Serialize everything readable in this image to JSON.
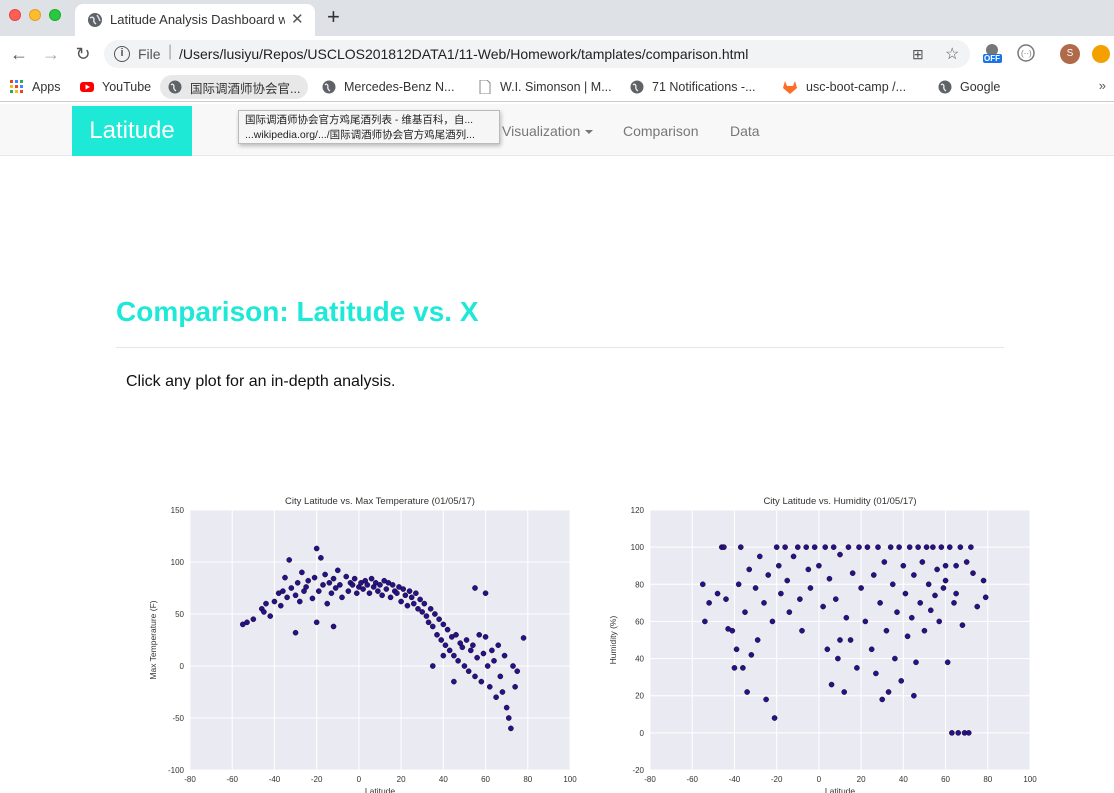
{
  "browser": {
    "tab_title": "Latitude Analysis Dashboard w",
    "tab_close": "✕",
    "new_tab": "+",
    "file_label": "File",
    "url": "/Users/lusiyu/Repos/USCLOS201812DATA1/11-Web/Homework/tamplates/comparison.html",
    "extension_badge": "OFF",
    "profile_initial": "S"
  },
  "bookmarks": [
    {
      "label": "Apps",
      "icon": "apps-grid-icon"
    },
    {
      "label": "YouTube",
      "icon": "youtube-icon"
    },
    {
      "label": "国际调酒师协会官...",
      "icon": "globe-icon"
    },
    {
      "label": "Mercedes-Benz N...",
      "icon": "globe-icon"
    },
    {
      "label": "W.I. Simonson | M...",
      "icon": "page-icon"
    },
    {
      "label": "71 Notifications -...",
      "icon": "globe-icon"
    },
    {
      "label": "usc-boot-camp /...",
      "icon": "gitlab-icon"
    },
    {
      "label": "Google",
      "icon": "globe-icon"
    }
  ],
  "bookmarks_more": "»",
  "tooltip": {
    "line1": "国际调酒师协会官方鸡尾酒列表 - 维基百科，自...",
    "line2": "...wikipedia.org/.../国际调酒师协会官方鸡尾酒列..."
  },
  "navbar": {
    "brand": "Latitude",
    "links": [
      "Visualization",
      "Comparison",
      "Data"
    ]
  },
  "page": {
    "title": "Comparison: Latitude vs. X",
    "intro": "Click any plot for an in-depth analysis."
  },
  "colors": {
    "accent": "#1de9d6",
    "marker": "#2a0f8a",
    "plot_bg": "#eaeaf2"
  },
  "chart_data": [
    {
      "type": "scatter",
      "title": "City Latitude vs. Max Temperature (01/05/17)",
      "xlabel": "Latitude",
      "ylabel": "Max Temperature (F)",
      "xlim": [
        -80,
        100
      ],
      "ylim": [
        -100,
        150
      ],
      "xticks": [
        -80,
        -60,
        -40,
        -20,
        0,
        20,
        40,
        60,
        80,
        100
      ],
      "yticks": [
        -100,
        -50,
        0,
        50,
        100,
        150
      ],
      "grid": true,
      "points": [
        [
          -55,
          40
        ],
        [
          -53,
          42
        ],
        [
          -50,
          45
        ],
        [
          -46,
          55
        ],
        [
          -45,
          52
        ],
        [
          -44,
          60
        ],
        [
          -42,
          48
        ],
        [
          -40,
          62
        ],
        [
          -38,
          70
        ],
        [
          -37,
          58
        ],
        [
          -36,
          72
        ],
        [
          -35,
          85
        ],
        [
          -34,
          66
        ],
        [
          -33,
          102
        ],
        [
          -32,
          75
        ],
        [
          -30,
          68
        ],
        [
          -29,
          80
        ],
        [
          -28,
          62
        ],
        [
          -27,
          90
        ],
        [
          -26,
          72
        ],
        [
          -25,
          76
        ],
        [
          -24,
          82
        ],
        [
          -22,
          65
        ],
        [
          -21,
          85
        ],
        [
          -20,
          113
        ],
        [
          -19,
          72
        ],
        [
          -18,
          104
        ],
        [
          -17,
          78
        ],
        [
          -16,
          88
        ],
        [
          -15,
          60
        ],
        [
          -14,
          80
        ],
        [
          -13,
          70
        ],
        [
          -12,
          84
        ],
        [
          -11,
          75
        ],
        [
          -10,
          92
        ],
        [
          -9,
          78
        ],
        [
          -8,
          66
        ],
        [
          -6,
          86
        ],
        [
          -5,
          72
        ],
        [
          -4,
          80
        ],
        [
          -3,
          78
        ],
        [
          -2,
          84
        ],
        [
          -1,
          70
        ],
        [
          0,
          76
        ],
        [
          1,
          80
        ],
        [
          2,
          74
        ],
        [
          3,
          82
        ],
        [
          4,
          78
        ],
        [
          5,
          70
        ],
        [
          6,
          84
        ],
        [
          7,
          76
        ],
        [
          8,
          80
        ],
        [
          9,
          72
        ],
        [
          10,
          78
        ],
        [
          11,
          68
        ],
        [
          12,
          82
        ],
        [
          13,
          74
        ],
        [
          14,
          80
        ],
        [
          15,
          66
        ],
        [
          16,
          78
        ],
        [
          17,
          72
        ],
        [
          18,
          70
        ],
        [
          19,
          76
        ],
        [
          20,
          62
        ],
        [
          21,
          74
        ],
        [
          22,
          68
        ],
        [
          23,
          58
        ],
        [
          24,
          72
        ],
        [
          25,
          66
        ],
        [
          26,
          60
        ],
        [
          27,
          70
        ],
        [
          28,
          55
        ],
        [
          29,
          64
        ],
        [
          30,
          52
        ],
        [
          31,
          60
        ],
        [
          32,
          48
        ],
        [
          33,
          42
        ],
        [
          34,
          55
        ],
        [
          35,
          38
        ],
        [
          36,
          50
        ],
        [
          37,
          30
        ],
        [
          38,
          45
        ],
        [
          39,
          25
        ],
        [
          40,
          40
        ],
        [
          41,
          20
        ],
        [
          42,
          35
        ],
        [
          43,
          15
        ],
        [
          44,
          28
        ],
        [
          45,
          10
        ],
        [
          46,
          30
        ],
        [
          47,
          5
        ],
        [
          48,
          22
        ],
        [
          49,
          18
        ],
        [
          50,
          0
        ],
        [
          51,
          25
        ],
        [
          52,
          -5
        ],
        [
          53,
          15
        ],
        [
          54,
          20
        ],
        [
          55,
          -10
        ],
        [
          56,
          8
        ],
        [
          57,
          30
        ],
        [
          58,
          -15
        ],
        [
          59,
          12
        ],
        [
          60,
          28
        ],
        [
          61,
          0
        ],
        [
          62,
          -20
        ],
        [
          63,
          15
        ],
        [
          64,
          5
        ],
        [
          65,
          -30
        ],
        [
          66,
          20
        ],
        [
          67,
          -10
        ],
        [
          68,
          -25
        ],
        [
          69,
          10
        ],
        [
          70,
          -40
        ],
        [
          71,
          -50
        ],
        [
          72,
          -60
        ],
        [
          73,
          0
        ],
        [
          74,
          -20
        ],
        [
          75,
          -5
        ],
        [
          78,
          27
        ],
        [
          -30,
          32
        ],
        [
          -20,
          42
        ],
        [
          -12,
          38
        ],
        [
          60,
          70
        ],
        [
          55,
          75
        ],
        [
          40,
          10
        ],
        [
          35,
          0
        ],
        [
          45,
          -15
        ]
      ]
    },
    {
      "type": "scatter",
      "title": "City Latitude vs. Humidity (01/05/17)",
      "xlabel": "Latitude",
      "ylabel": "Humidity (%)",
      "xlim": [
        -80,
        100
      ],
      "ylim": [
        -20,
        120
      ],
      "xticks": [
        -80,
        -60,
        -40,
        -20,
        0,
        20,
        40,
        60,
        80,
        100
      ],
      "yticks": [
        -20,
        0,
        20,
        40,
        60,
        80,
        100,
        120
      ],
      "grid": true,
      "points": [
        [
          -55,
          80
        ],
        [
          -54,
          60
        ],
        [
          -52,
          70
        ],
        [
          -48,
          75
        ],
        [
          -46,
          100
        ],
        [
          -45,
          100
        ],
        [
          -44,
          72
        ],
        [
          -43,
          56
        ],
        [
          -40,
          35
        ],
        [
          -39,
          45
        ],
        [
          -38,
          80
        ],
        [
          -37,
          100
        ],
        [
          -36,
          35
        ],
        [
          -35,
          65
        ],
        [
          -34,
          22
        ],
        [
          -33,
          88
        ],
        [
          -32,
          42
        ],
        [
          -30,
          78
        ],
        [
          -28,
          95
        ],
        [
          -26,
          70
        ],
        [
          -25,
          18
        ],
        [
          -24,
          85
        ],
        [
          -22,
          60
        ],
        [
          -21,
          8
        ],
        [
          -20,
          100
        ],
        [
          -19,
          90
        ],
        [
          -18,
          75
        ],
        [
          -16,
          100
        ],
        [
          -15,
          82
        ],
        [
          -14,
          65
        ],
        [
          -12,
          95
        ],
        [
          -10,
          100
        ],
        [
          -9,
          72
        ],
        [
          -8,
          55
        ],
        [
          -6,
          100
        ],
        [
          -5,
          88
        ],
        [
          -4,
          78
        ],
        [
          -2,
          100
        ],
        [
          0,
          90
        ],
        [
          2,
          68
        ],
        [
          3,
          100
        ],
        [
          4,
          45
        ],
        [
          5,
          83
        ],
        [
          6,
          26
        ],
        [
          7,
          100
        ],
        [
          8,
          72
        ],
        [
          9,
          40
        ],
        [
          10,
          96
        ],
        [
          12,
          22
        ],
        [
          13,
          62
        ],
        [
          14,
          100
        ],
        [
          15,
          50
        ],
        [
          16,
          86
        ],
        [
          18,
          35
        ],
        [
          19,
          100
        ],
        [
          20,
          78
        ],
        [
          22,
          60
        ],
        [
          23,
          100
        ],
        [
          25,
          45
        ],
        [
          26,
          85
        ],
        [
          27,
          32
        ],
        [
          28,
          100
        ],
        [
          29,
          70
        ],
        [
          30,
          18
        ],
        [
          31,
          92
        ],
        [
          32,
          55
        ],
        [
          33,
          22
        ],
        [
          34,
          100
        ],
        [
          35,
          80
        ],
        [
          36,
          40
        ],
        [
          37,
          65
        ],
        [
          38,
          100
        ],
        [
          39,
          28
        ],
        [
          40,
          90
        ],
        [
          41,
          75
        ],
        [
          42,
          52
        ],
        [
          43,
          100
        ],
        [
          44,
          62
        ],
        [
          45,
          85
        ],
        [
          46,
          38
        ],
        [
          47,
          100
        ],
        [
          48,
          70
        ],
        [
          49,
          92
        ],
        [
          50,
          55
        ],
        [
          51,
          100
        ],
        [
          52,
          80
        ],
        [
          53,
          66
        ],
        [
          54,
          100
        ],
        [
          55,
          74
        ],
        [
          56,
          88
        ],
        [
          57,
          60
        ],
        [
          58,
          100
        ],
        [
          59,
          78
        ],
        [
          60,
          82
        ],
        [
          61,
          38
        ],
        [
          62,
          100
        ],
        [
          63,
          0
        ],
        [
          64,
          70
        ],
        [
          65,
          90
        ],
        [
          66,
          0
        ],
        [
          67,
          100
        ],
        [
          68,
          58
        ],
        [
          69,
          0
        ],
        [
          70,
          92
        ],
        [
          71,
          0
        ],
        [
          72,
          100
        ],
        [
          73,
          86
        ],
        [
          75,
          68
        ],
        [
          78,
          82
        ],
        [
          79,
          73
        ],
        [
          -41,
          55
        ],
        [
          -29,
          50
        ],
        [
          10,
          50
        ],
        [
          45,
          20
        ],
        [
          60,
          90
        ],
        [
          65,
          75
        ]
      ]
    }
  ]
}
